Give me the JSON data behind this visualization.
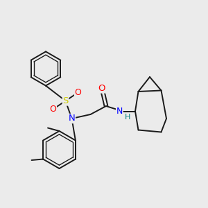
{
  "bg_color": "#ebebeb",
  "atom_colors": {
    "O": "#ff0000",
    "N": "#0000ff",
    "S": "#cccc00",
    "H": "#008080",
    "C": "#1a1a1a"
  },
  "bond_lw": 1.4,
  "inner_ring_shrink": 0.016,
  "figsize": [
    3.0,
    3.0
  ],
  "dpi": 100
}
